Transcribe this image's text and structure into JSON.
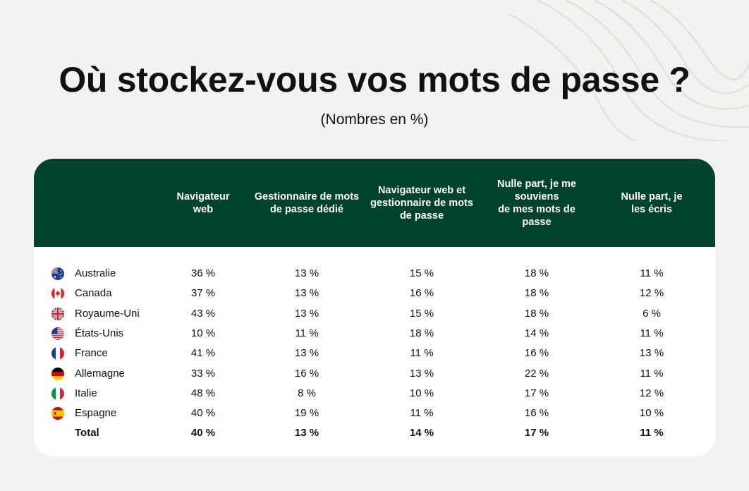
{
  "title": "Où stockez-vous vos mots de passe ?",
  "subtitle": "(Nombres en %)",
  "colors": {
    "header_bg": "#00432b",
    "page_bg": "#f3f2f0",
    "card_bg": "#ffffff"
  },
  "chart_data": {
    "type": "table",
    "title": "Où stockez-vous vos mots de passe ?",
    "subtitle": "(Nombres en %)",
    "columns": [
      "Navigateur\nweb",
      "Gestionnaire de mots\nde passe dédié",
      "Navigateur web et\ngestionnaire de mots\nde passe",
      "Nulle part, je me\nsouviens\nde mes mots de\npasse",
      "Nulle part, je\nles écris"
    ],
    "rows": [
      {
        "country": "Australie",
        "flag": "au-flag",
        "values": [
          "36 %",
          "13 %",
          "15 %",
          "18 %",
          "11 %"
        ]
      },
      {
        "country": "Canada",
        "flag": "ca-flag",
        "values": [
          "37 %",
          "13 %",
          "16 %",
          "18 %",
          "12 %"
        ]
      },
      {
        "country": "Royaume-Uni",
        "flag": "gb-flag",
        "values": [
          "43 %",
          "13 %",
          "15 %",
          "18 %",
          "6 %"
        ]
      },
      {
        "country": "États-Unis",
        "flag": "us-flag",
        "values": [
          "10 %",
          "11 %",
          "18 %",
          "14 %",
          "11 %"
        ]
      },
      {
        "country": "France",
        "flag": "fr-flag",
        "values": [
          "41 %",
          "13 %",
          "11 %",
          "16 %",
          "13 %"
        ]
      },
      {
        "country": "Allemagne",
        "flag": "de-flag",
        "values": [
          "33 %",
          "16 %",
          "13 %",
          "22 %",
          "11 %"
        ]
      },
      {
        "country": "Italie",
        "flag": "it-flag",
        "values": [
          "48 %",
          "8 %",
          "10 %",
          "17 %",
          "12 %"
        ]
      },
      {
        "country": "Espagne",
        "flag": "es-flag",
        "values": [
          "40 %",
          "19 %",
          "11 %",
          "16 %",
          "10 %"
        ]
      }
    ],
    "total": {
      "label": "Total",
      "values": [
        "40 %",
        "13 %",
        "14 %",
        "17 %",
        "11 %"
      ]
    }
  }
}
